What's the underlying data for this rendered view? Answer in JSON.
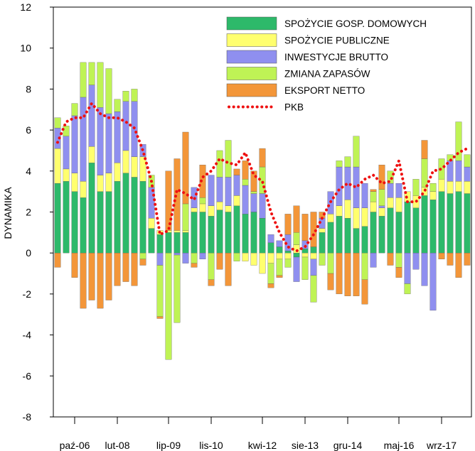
{
  "chart_data": {
    "type": "bar",
    "stacked": true,
    "xlabel": "",
    "ylabel": "DYNAMIKA",
    "ylim": [
      -8,
      12
    ],
    "yticks": [
      -8,
      -6,
      -4,
      -2,
      0,
      2,
      4,
      6,
      8,
      10,
      12
    ],
    "x_tick_labels": [
      {
        "label": "paź-06",
        "quarter_index": 2
      },
      {
        "label": "lut-08",
        "quarter_index": 7
      },
      {
        "label": "lip-09",
        "quarter_index": 13
      },
      {
        "label": "lis-10",
        "quarter_index": 18
      },
      {
        "label": "kwi-12",
        "quarter_index": 24
      },
      {
        "label": "sie-13",
        "quarter_index": 29
      },
      {
        "label": "gru-14",
        "quarter_index": 34
      },
      {
        "label": "maj-16",
        "quarter_index": 40
      },
      {
        "label": "wrz-17",
        "quarter_index": 45
      }
    ],
    "grid": false,
    "legend_position": "top-right",
    "series": [
      {
        "name": "SPOŻYCIE GOSP. DOMOWYCH",
        "color": "#2db96a",
        "kind": "bar",
        "values": [
          3.4,
          3.5,
          3.0,
          2.7,
          4.4,
          3.0,
          3.0,
          3.5,
          3.9,
          3.7,
          3.5,
          1.2,
          0.9,
          1.0,
          1.0,
          1.0,
          2.0,
          2.0,
          1.8,
          2.1,
          2.0,
          2.3,
          1.9,
          2.0,
          1.7,
          0.5,
          0.3,
          0.1,
          -0.2,
          0.2,
          0.3,
          1.0,
          1.5,
          1.8,
          1.7,
          1.2,
          1.3,
          2.0,
          1.8,
          2.2,
          2.0,
          2.5,
          2.2,
          2.8,
          2.6,
          3.0,
          2.9,
          3.0,
          2.9
        ]
      },
      {
        "name": "SPOŻYCIE PUBLICZNE",
        "color": "#ffff6e",
        "kind": "bar",
        "values": [
          1.7,
          0.6,
          0.9,
          0.8,
          0.8,
          0.8,
          0.9,
          0.9,
          1.1,
          1.0,
          1.2,
          0.5,
          0.2,
          0.1,
          0.1,
          0.1,
          0.2,
          0.4,
          0.5,
          0.4,
          0.3,
          0.5,
          -0.4,
          -0.6,
          -1.0,
          -0.5,
          -0.3,
          -0.3,
          0.4,
          -0.2,
          -0.3,
          0.2,
          0.4,
          0.5,
          0.9,
          1.0,
          0.9,
          0.5,
          0.4,
          0.5,
          0.7,
          0.5,
          0.6,
          0.4,
          0.4,
          0.6,
          0.6,
          0.5,
          0.6
        ]
      },
      {
        "name": "INWESTYCJE BRUTTO",
        "color": "#8f8fef",
        "kind": "bar",
        "values": [
          1.0,
          1.6,
          2.8,
          4.1,
          3.0,
          3.3,
          2.9,
          2.5,
          2.4,
          2.7,
          0.6,
          1.5,
          -0.6,
          0.0,
          -0.1,
          -0.5,
          1.0,
          -0.3,
          1.5,
          1.2,
          1.4,
          1.0,
          1.4,
          0.9,
          1.2,
          0.4,
          0.3,
          0.8,
          -1.2,
          0.4,
          -0.8,
          0.5,
          1.1,
          1.9,
          1.6,
          2.0,
          1.2,
          -0.7,
          0.1,
          0.7,
          0.7,
          -1.5,
          -0.8,
          -1.6,
          -2.8,
          0.0,
          1.0,
          1.0,
          0.7
        ]
      },
      {
        "name": "ZMIANA ZAPASÓW",
        "color": "#bff355",
        "kind": "bar",
        "values": [
          0.5,
          0.5,
          0.6,
          1.7,
          1.1,
          2.2,
          2.2,
          0.6,
          0.5,
          0.6,
          -0.3,
          0.6,
          -2.5,
          -5.2,
          -3.3,
          1.3,
          -0.5,
          0.3,
          -1.3,
          1.3,
          1.8,
          -0.4,
          0.3,
          0.1,
          1.3,
          -1.0,
          -0.8,
          -0.4,
          0.6,
          -1.1,
          -1.3,
          -0.6,
          -1.0,
          0.3,
          0.5,
          1.5,
          -1.3,
          0.5,
          0.8,
          0.6,
          -0.7,
          -0.5,
          0.8,
          1.4,
          0.4,
          1.0,
          0.3,
          1.9,
          0.6
        ]
      },
      {
        "name": "EKSPORT NETTO",
        "color": "#f39639",
        "kind": "bar",
        "values": [
          -0.7,
          0.0,
          -1.2,
          -2.7,
          -2.3,
          -2.7,
          -2.3,
          -1.6,
          -1.4,
          -1.6,
          -0.3,
          0.0,
          -0.1,
          2.9,
          3.5,
          3.5,
          -0.2,
          1.6,
          -0.3,
          -0.8,
          -1.6,
          0.3,
          0.9,
          1.0,
          0.9,
          -0.2,
          -0.1,
          1.0,
          1.3,
          1.3,
          1.7,
          0.3,
          -0.8,
          -2.0,
          -2.1,
          -2.1,
          -1.2,
          0.1,
          1.2,
          -0.6,
          -0.5,
          0.0,
          0.0,
          0.9,
          0.0,
          -0.3,
          -0.6,
          -1.2,
          -0.6
        ]
      },
      {
        "name": "PKB",
        "color": "#ee1111",
        "kind": "line",
        "style": "dotted",
        "values": [
          5.4,
          6.4,
          6.6,
          6.6,
          7.3,
          6.8,
          6.6,
          6.6,
          6.4,
          6.1,
          5.0,
          3.5,
          0.9,
          1.1,
          3.1,
          2.9,
          2.6,
          3.7,
          4.0,
          4.6,
          4.4,
          4.3,
          4.9,
          3.8,
          3.5,
          2.0,
          1.0,
          0.3,
          0.1,
          0.3,
          0.9,
          1.7,
          2.5,
          3.1,
          3.4,
          3.2,
          3.6,
          3.8,
          3.4,
          3.5,
          4.5,
          2.5,
          2.5,
          3.0,
          4.0,
          4.1,
          4.5,
          4.9,
          5.1
        ]
      }
    ]
  }
}
